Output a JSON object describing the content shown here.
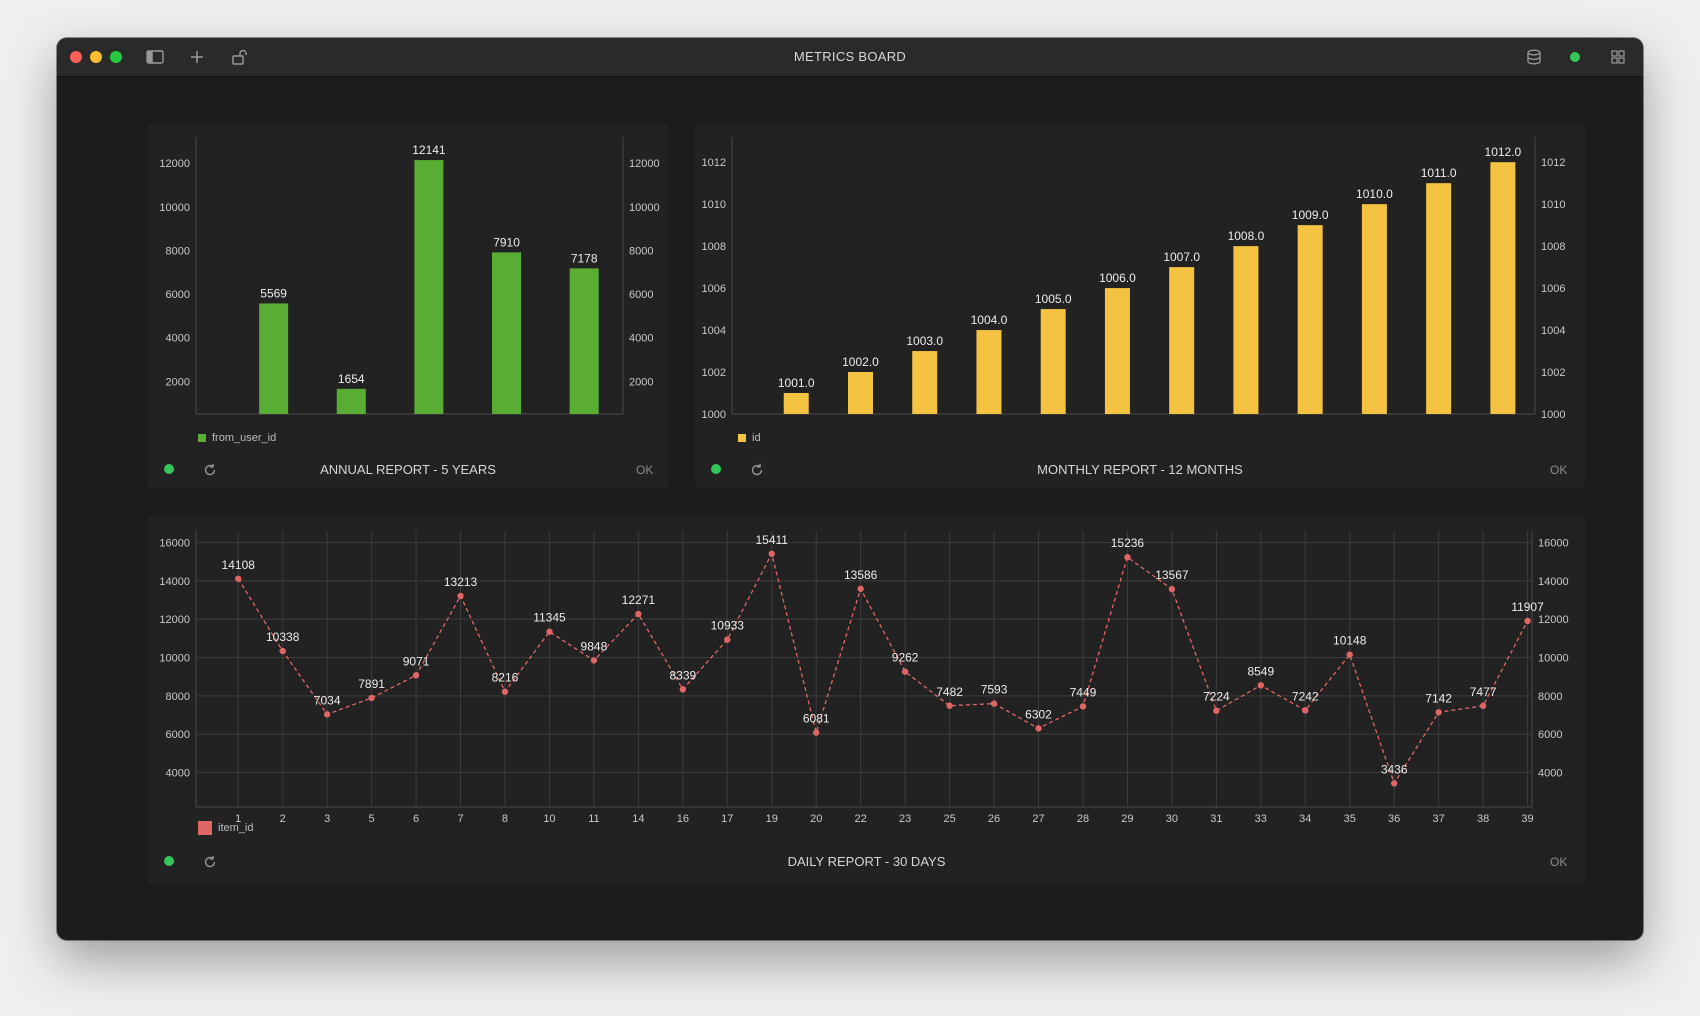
{
  "window": {
    "title": "METRICS BOARD"
  },
  "colors": {
    "green": "#5aad33",
    "yellow": "#f5c342",
    "red": "#e06666",
    "status": "#34c759"
  },
  "icons": {
    "toolbar_left": [
      "sidebar-icon",
      "plus-icon",
      "unlock-icon"
    ],
    "toolbar_right": [
      "database-icon",
      "status-dot",
      "grid-icon"
    ]
  },
  "panels": {
    "annual": {
      "title": "ANNUAL REPORT - 5 YEARS",
      "status": "OK",
      "chart_data": {
        "type": "bar",
        "categories": [
          "",
          "",
          "",
          "",
          ""
        ],
        "series": [
          {
            "name": "from_user_id",
            "values": [
              5569,
              1654,
              12141,
              7910,
              7178
            ]
          }
        ],
        "value_labels": [
          "5569",
          "1654",
          "12141",
          "7910",
          "7178"
        ],
        "ylim": [
          500,
          13200
        ],
        "yticks": [
          2000,
          4000,
          6000,
          8000,
          10000,
          12000
        ],
        "dual_axis": true,
        "grid": false,
        "legend": "bottom-left",
        "color": "#5aad33"
      }
    },
    "monthly": {
      "title": "MONTHLY REPORT - 12 MONTHS",
      "status": "OK",
      "chart_data": {
        "type": "bar",
        "categories": [
          "",
          "",
          "",
          "",
          "",
          "",
          "",
          "",
          "",
          "",
          "",
          ""
        ],
        "series": [
          {
            "name": "id",
            "values": [
              1001.0,
              1002.0,
              1003.0,
              1004.0,
              1005.0,
              1006.0,
              1007.0,
              1008.0,
              1009.0,
              1010.0,
              1011.0,
              1012.0
            ]
          }
        ],
        "value_labels": [
          "1001.0",
          "1002.0",
          "1003.0",
          "1004.0",
          "1005.0",
          "1006.0",
          "1007.0",
          "1008.0",
          "1009.0",
          "1010.0",
          "1011.0",
          "1012.0"
        ],
        "ylim": [
          1000,
          1013.2
        ],
        "yticks": [
          1000,
          1002,
          1004,
          1006,
          1008,
          1010,
          1012
        ],
        "dual_axis": true,
        "grid": false,
        "legend": "bottom-left",
        "color": "#f5c342"
      }
    },
    "daily": {
      "title": "DAILY REPORT - 30 DAYS",
      "status": "OK",
      "chart_data": {
        "type": "line",
        "categories": [
          "1",
          "2",
          "3",
          "5",
          "6",
          "7",
          "8",
          "10",
          "11",
          "14",
          "16",
          "17",
          "19",
          "20",
          "22",
          "23",
          "25",
          "26",
          "27",
          "28",
          "29",
          "30",
          "31",
          "33",
          "34",
          "35",
          "36",
          "37",
          "38",
          "39"
        ],
        "series": [
          {
            "name": "item_id",
            "values": [
              14108,
              10338,
              7034,
              7891,
              9071,
              13213,
              8216,
              11345,
              9848,
              12271,
              8339,
              10933,
              15411,
              6081,
              13586,
              9262,
              7482,
              7593,
              6302,
              7449,
              15236,
              13567,
              7224,
              8549,
              7242,
              10148,
              3436,
              7142,
              7477,
              11907
            ]
          }
        ],
        "ylim": [
          2200,
          16600
        ],
        "yticks": [
          4000,
          6000,
          8000,
          10000,
          12000,
          14000,
          16000
        ],
        "dual_axis": true,
        "grid": true,
        "line_style": "dashed",
        "legend": "bottom-left",
        "color": "#e06666"
      }
    }
  }
}
